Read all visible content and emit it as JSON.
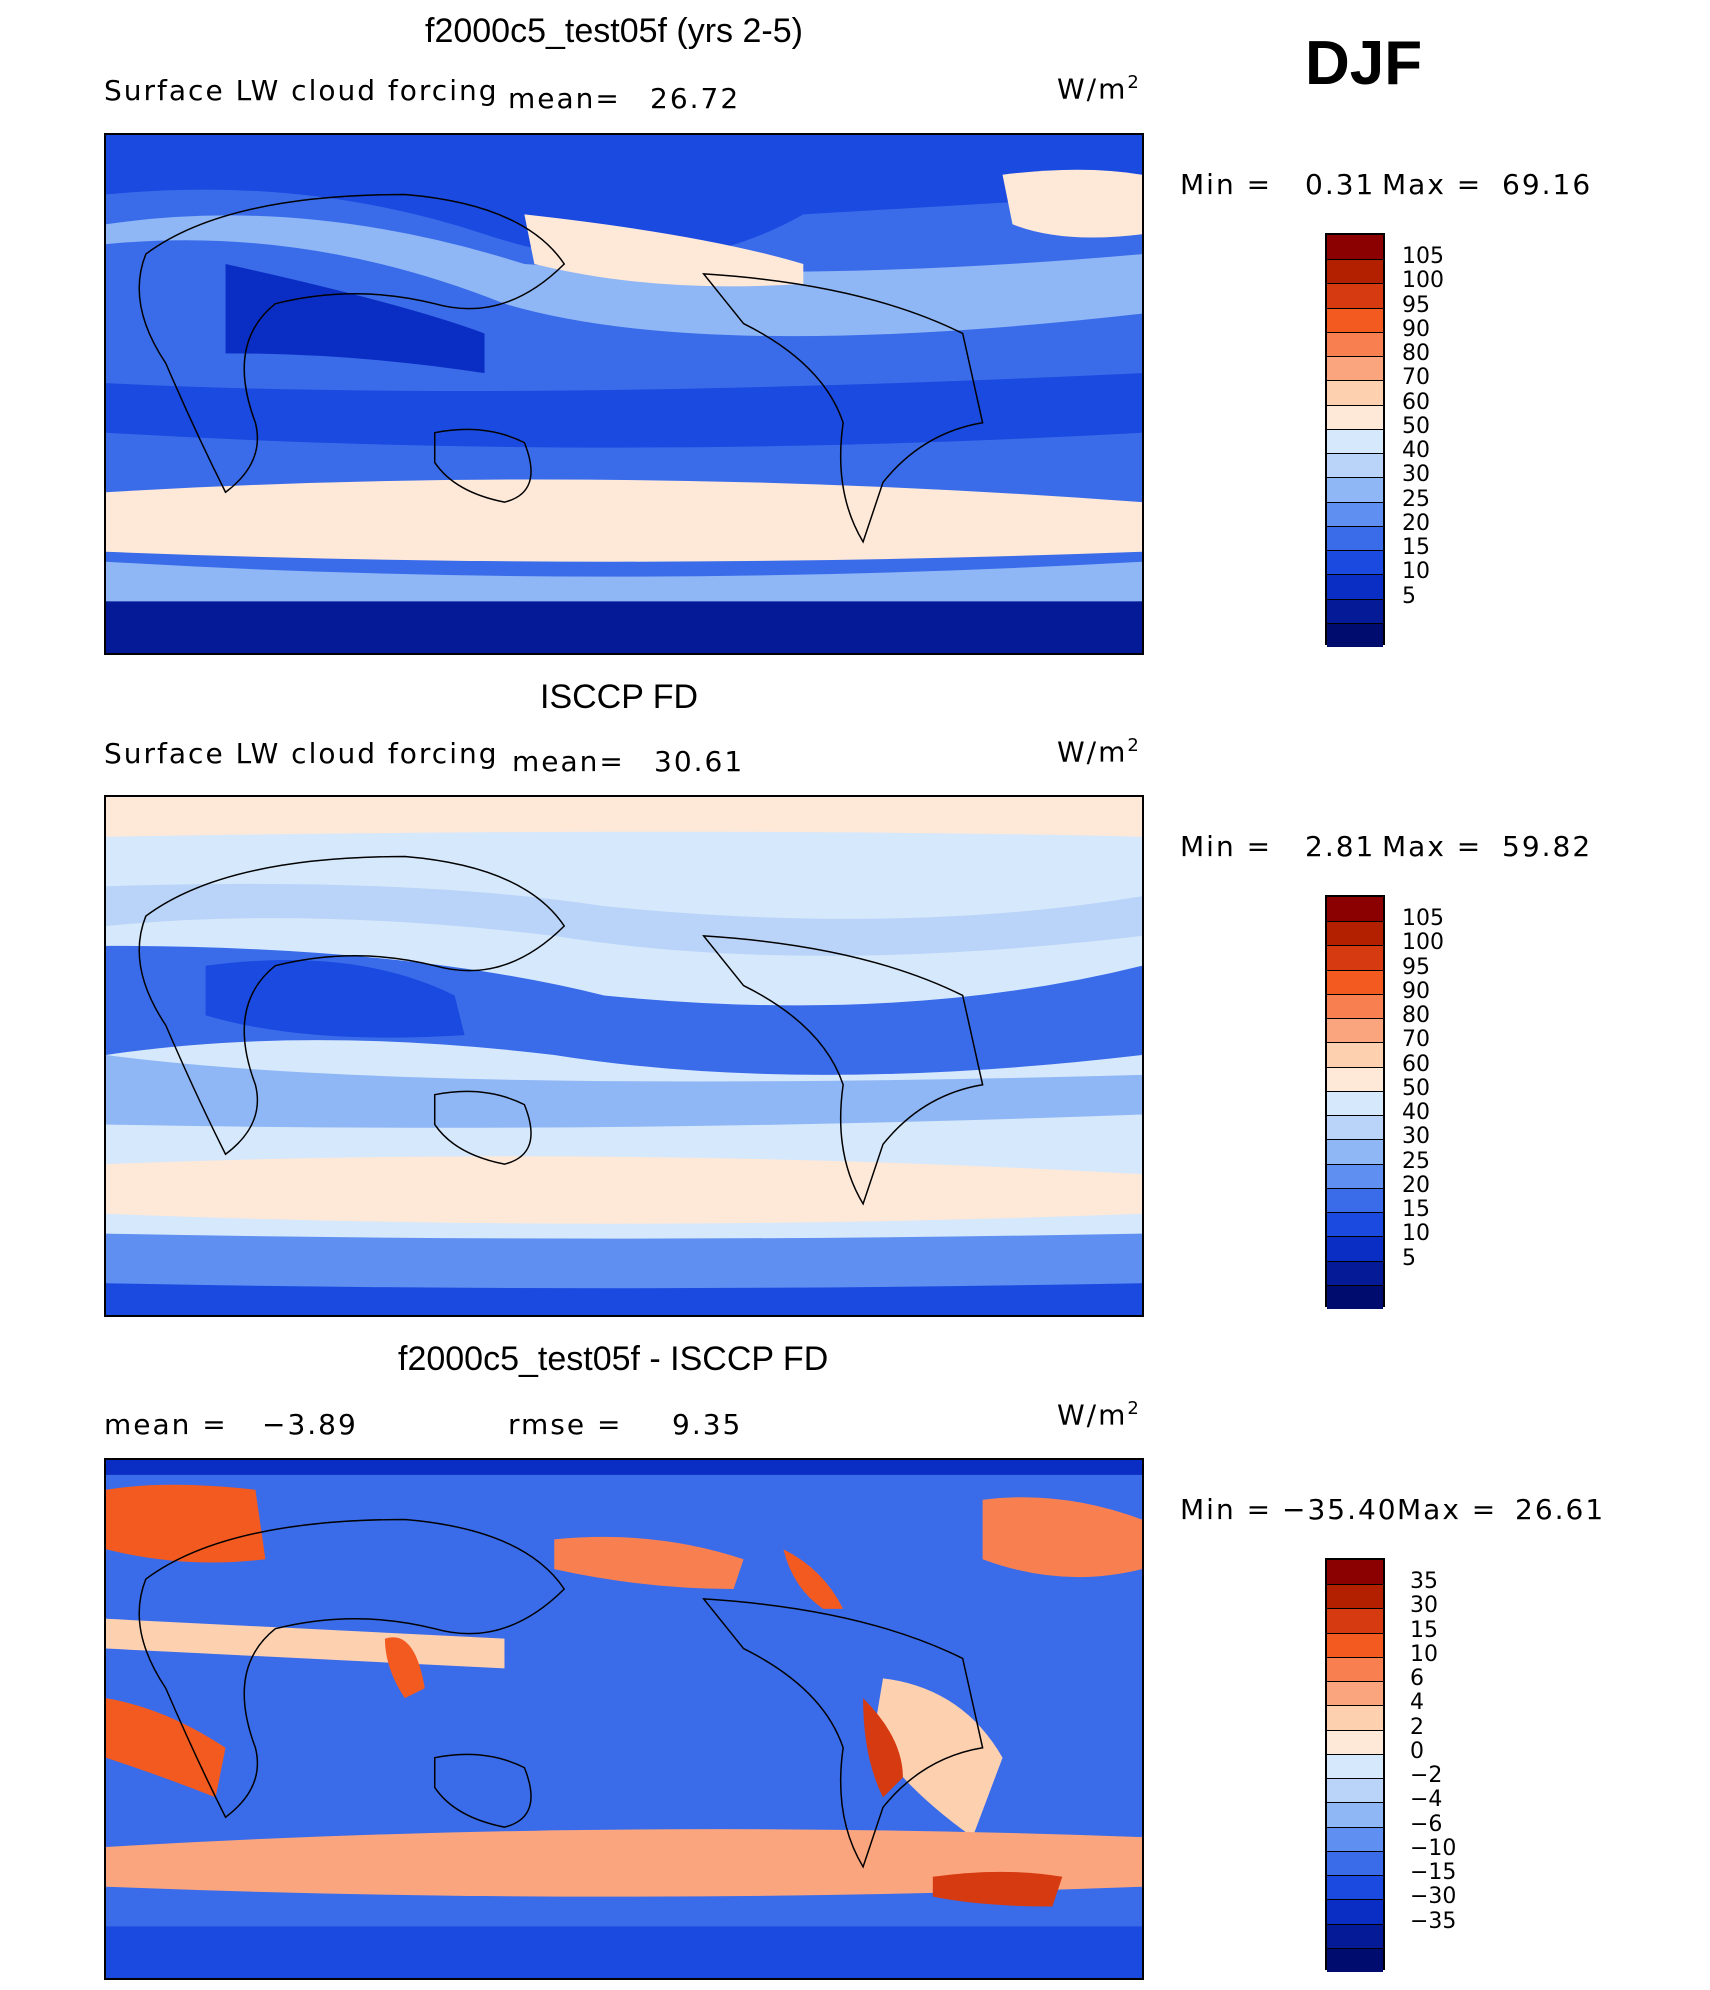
{
  "season": "DJF",
  "colors": {
    "seq_scale": [
      "#8b0000",
      "#b32000",
      "#d63a10",
      "#f25a20",
      "#f88050",
      "#fba57e",
      "#fdd0b0",
      "#fee8d8",
      "#d6e8fb",
      "#b9d4f8",
      "#8fb6f5",
      "#5f8ff0",
      "#3a6cea",
      "#1a4ae0",
      "#0a2ec4",
      "#041a96",
      "#000c6e"
    ],
    "diff_scale": [
      "#8b0000",
      "#b32000",
      "#d63a10",
      "#f25a20",
      "#f88050",
      "#fba57e",
      "#fdd0b0",
      "#fee8d8",
      "#d6e8fb",
      "#b9d4f8",
      "#8fb6f5",
      "#5f8ff0",
      "#3a6cea",
      "#1a4ae0",
      "#0a2ec4",
      "#041a96",
      "#000c6e"
    ]
  },
  "panels": [
    {
      "title": "f2000c5_test05f (yrs 2-5)",
      "variable": "Surface LW cloud forcing",
      "mean_label": "mean=",
      "mean_value": "26.72",
      "units_base": "W/m",
      "units_exp": "2",
      "min_label": "Min  =",
      "min_value": "0.31",
      "max_label": "Max  =",
      "max_value": "69.16",
      "levels": [
        "105",
        "100",
        "95",
        "90",
        "80",
        "70",
        "60",
        "50",
        "40",
        "30",
        "25",
        "20",
        "15",
        "10",
        "5"
      ]
    },
    {
      "title": "ISCCP FD",
      "variable": "Surface LW cloud forcing",
      "mean_label": "mean=",
      "mean_value": "30.61",
      "units_base": "W/m",
      "units_exp": "2",
      "min_label": "Min  =",
      "min_value": "2.81",
      "max_label": "Max  =",
      "max_value": "59.82",
      "levels": [
        "105",
        "100",
        "95",
        "90",
        "80",
        "70",
        "60",
        "50",
        "40",
        "30",
        "25",
        "20",
        "15",
        "10",
        "5"
      ]
    },
    {
      "title": "f2000c5_test05f - ISCCP FD",
      "mean_label": "mean  =",
      "mean_value": "−3.89",
      "rmse_label": "rmse  =",
      "rmse_value": "9.35",
      "units_base": "W/m",
      "units_exp": "2",
      "min_label": "Min  =",
      "min_value": "−35.40",
      "max_label": "Max  =",
      "max_value": "26.61",
      "levels": [
        "35",
        "30",
        "15",
        "10",
        "6",
        "4",
        "2",
        "0",
        "−2",
        "−4",
        "−6",
        "−10",
        "−15",
        "−30",
        "−35"
      ]
    }
  ]
}
